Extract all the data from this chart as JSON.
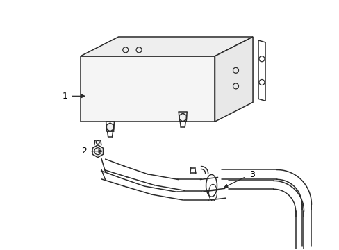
{
  "background_color": "#ffffff",
  "line_color": "#2a2a2a",
  "label_color": "#000000",
  "label_fontsize": 9,
  "figsize": [
    4.89,
    3.6
  ],
  "dpi": 100
}
